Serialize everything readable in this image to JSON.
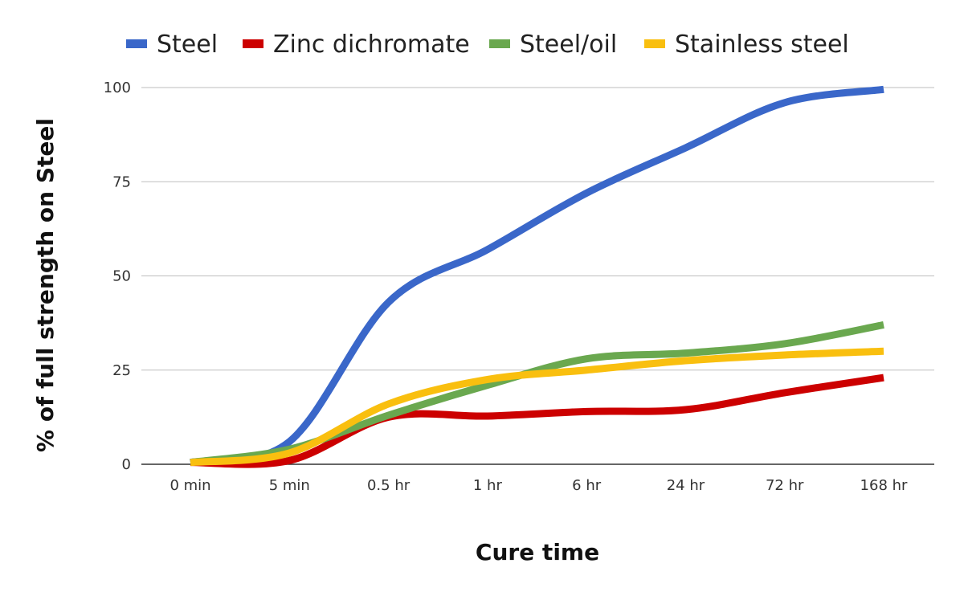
{
  "chart_data": {
    "type": "line",
    "title": "",
    "xlabel": "Cure time",
    "ylabel": "% of full strength on Steel",
    "categories": [
      "0 min",
      "5 min",
      "0.5 hr",
      "1 hr",
      "6 hr",
      "24 hr",
      "72 hr",
      "168 hr"
    ],
    "ylim": [
      0,
      100
    ],
    "yticks": [
      0,
      25,
      50,
      75,
      100
    ],
    "grid": true,
    "legend_position": "top",
    "series": [
      {
        "name": "Steel",
        "color": "#3a67c9",
        "values": [
          0.5,
          6,
          43,
          57,
          72,
          84,
          96,
          99.5
        ]
      },
      {
        "name": "Zinc dichromate",
        "color": "#cc0000",
        "values": [
          0.5,
          1,
          12.5,
          12.8,
          14,
          14.5,
          19,
          23
        ]
      },
      {
        "name": "Steel/oil",
        "color": "#6aa84f",
        "values": [
          0.5,
          4,
          13,
          21,
          28,
          29.5,
          32,
          37
        ]
      },
      {
        "name": "Stainless steel",
        "color": "#f9bf0f",
        "values": [
          0.5,
          3,
          16,
          22.5,
          25,
          27.5,
          29,
          30
        ]
      }
    ]
  }
}
